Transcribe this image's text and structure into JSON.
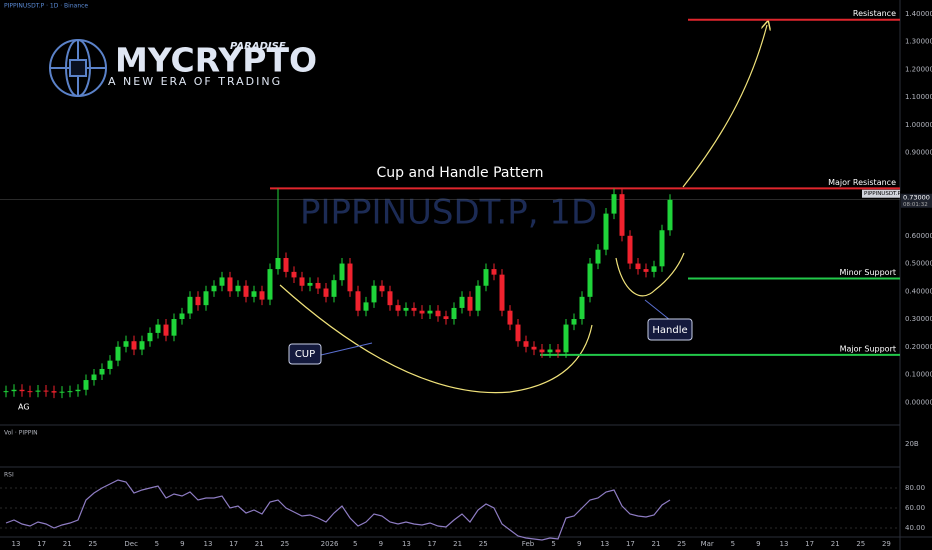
{
  "chart_data": {
    "type": "candlestick",
    "title": "Cup and Handle Pattern",
    "symbol_header": "PIPPINUSDT.P · 1D · Binance",
    "watermark": "PIPPINUSDT.P, 1D",
    "corner_label": "AG",
    "logo": {
      "brand": "MYCRYPTO",
      "sub": "PARADISE",
      "tagline": "A NEW ERA OF TRADING"
    },
    "up_color": "#1fd43a",
    "down_color": "#f0222e",
    "ylim": [
      -0.082,
      1.45
    ],
    "yticks": [
      {
        "value": 1.4,
        "label": "1.40000"
      },
      {
        "value": 1.3,
        "label": "1.30000"
      },
      {
        "value": 1.2,
        "label": "1.20000"
      },
      {
        "value": 1.1,
        "label": "1.10000"
      },
      {
        "value": 1.0,
        "label": "1.00000"
      },
      {
        "value": 0.9,
        "label": "0.90000"
      },
      {
        "value": 0.6,
        "label": "0.60000"
      },
      {
        "value": 0.5,
        "label": "0.50000"
      },
      {
        "value": 0.4,
        "label": "0.40000"
      },
      {
        "value": 0.3,
        "label": "0.30000"
      },
      {
        "value": 0.2,
        "label": "0.20000"
      },
      {
        "value": 0.1,
        "label": "0.10000"
      },
      {
        "value": 0,
        "label": "0.00000"
      }
    ],
    "x_labels": [
      "13",
      "17",
      "21",
      "25",
      "Dec",
      "5",
      "9",
      "13",
      "17",
      "21",
      "25",
      "2026",
      "5",
      "9",
      "13",
      "17",
      "21",
      "25",
      "Feb",
      "5",
      "9",
      "13",
      "17",
      "21",
      "25",
      "Mar",
      "5",
      "9",
      "13",
      "17",
      "21",
      "25",
      "29"
    ],
    "ohlc": [
      [
        0.038,
        0.06,
        0.018,
        0.04
      ],
      [
        0.04,
        0.065,
        0.02,
        0.045
      ],
      [
        0.045,
        0.065,
        0.02,
        0.04
      ],
      [
        0.04,
        0.06,
        0.018,
        0.038
      ],
      [
        0.038,
        0.062,
        0.018,
        0.042
      ],
      [
        0.042,
        0.062,
        0.02,
        0.04
      ],
      [
        0.04,
        0.06,
        0.015,
        0.035
      ],
      [
        0.035,
        0.058,
        0.015,
        0.038
      ],
      [
        0.038,
        0.06,
        0.018,
        0.04
      ],
      [
        0.04,
        0.065,
        0.02,
        0.045
      ],
      [
        0.045,
        0.1,
        0.025,
        0.08
      ],
      [
        0.08,
        0.12,
        0.06,
        0.1
      ],
      [
        0.1,
        0.14,
        0.08,
        0.12
      ],
      [
        0.12,
        0.17,
        0.1,
        0.15
      ],
      [
        0.15,
        0.22,
        0.13,
        0.2
      ],
      [
        0.2,
        0.24,
        0.18,
        0.22
      ],
      [
        0.22,
        0.24,
        0.17,
        0.19
      ],
      [
        0.19,
        0.24,
        0.17,
        0.22
      ],
      [
        0.22,
        0.27,
        0.2,
        0.25
      ],
      [
        0.25,
        0.3,
        0.23,
        0.28
      ],
      [
        0.28,
        0.3,
        0.22,
        0.24
      ],
      [
        0.24,
        0.32,
        0.22,
        0.3
      ],
      [
        0.3,
        0.34,
        0.28,
        0.32
      ],
      [
        0.32,
        0.4,
        0.3,
        0.38
      ],
      [
        0.38,
        0.4,
        0.33,
        0.35
      ],
      [
        0.35,
        0.42,
        0.33,
        0.4
      ],
      [
        0.4,
        0.44,
        0.38,
        0.42
      ],
      [
        0.42,
        0.47,
        0.4,
        0.45
      ],
      [
        0.45,
        0.47,
        0.38,
        0.4
      ],
      [
        0.4,
        0.44,
        0.38,
        0.42
      ],
      [
        0.42,
        0.44,
        0.36,
        0.38
      ],
      [
        0.38,
        0.42,
        0.36,
        0.4
      ],
      [
        0.4,
        0.42,
        0.35,
        0.37
      ],
      [
        0.37,
        0.5,
        0.35,
        0.48
      ],
      [
        0.48,
        0.77,
        0.46,
        0.52
      ],
      [
        0.52,
        0.54,
        0.45,
        0.47
      ],
      [
        0.47,
        0.49,
        0.43,
        0.45
      ],
      [
        0.45,
        0.47,
        0.4,
        0.42
      ],
      [
        0.42,
        0.45,
        0.4,
        0.43
      ],
      [
        0.43,
        0.45,
        0.39,
        0.41
      ],
      [
        0.41,
        0.43,
        0.36,
        0.38
      ],
      [
        0.38,
        0.46,
        0.36,
        0.44
      ],
      [
        0.44,
        0.52,
        0.42,
        0.5
      ],
      [
        0.5,
        0.52,
        0.38,
        0.4
      ],
      [
        0.4,
        0.42,
        0.31,
        0.33
      ],
      [
        0.33,
        0.38,
        0.31,
        0.36
      ],
      [
        0.36,
        0.44,
        0.34,
        0.42
      ],
      [
        0.42,
        0.44,
        0.38,
        0.4
      ],
      [
        0.4,
        0.42,
        0.33,
        0.35
      ],
      [
        0.35,
        0.37,
        0.31,
        0.33
      ],
      [
        0.33,
        0.36,
        0.31,
        0.34
      ],
      [
        0.34,
        0.36,
        0.31,
        0.33
      ],
      [
        0.33,
        0.35,
        0.3,
        0.32
      ],
      [
        0.32,
        0.35,
        0.3,
        0.33
      ],
      [
        0.33,
        0.35,
        0.29,
        0.31
      ],
      [
        0.31,
        0.33,
        0.28,
        0.3
      ],
      [
        0.3,
        0.36,
        0.28,
        0.34
      ],
      [
        0.34,
        0.4,
        0.32,
        0.38
      ],
      [
        0.38,
        0.4,
        0.31,
        0.33
      ],
      [
        0.33,
        0.44,
        0.31,
        0.42
      ],
      [
        0.42,
        0.5,
        0.4,
        0.48
      ],
      [
        0.48,
        0.5,
        0.44,
        0.46
      ],
      [
        0.46,
        0.48,
        0.31,
        0.33
      ],
      [
        0.33,
        0.35,
        0.26,
        0.28
      ],
      [
        0.28,
        0.3,
        0.2,
        0.22
      ],
      [
        0.22,
        0.24,
        0.18,
        0.2
      ],
      [
        0.2,
        0.22,
        0.17,
        0.19
      ],
      [
        0.19,
        0.21,
        0.16,
        0.18
      ],
      [
        0.18,
        0.21,
        0.16,
        0.19
      ],
      [
        0.19,
        0.21,
        0.16,
        0.18
      ],
      [
        0.18,
        0.3,
        0.16,
        0.28
      ],
      [
        0.28,
        0.32,
        0.26,
        0.3
      ],
      [
        0.3,
        0.4,
        0.28,
        0.38
      ],
      [
        0.38,
        0.52,
        0.36,
        0.5
      ],
      [
        0.5,
        0.57,
        0.48,
        0.55
      ],
      [
        0.55,
        0.7,
        0.53,
        0.68
      ],
      [
        0.68,
        0.77,
        0.66,
        0.75
      ],
      [
        0.75,
        0.77,
        0.58,
        0.6
      ],
      [
        0.6,
        0.62,
        0.48,
        0.5
      ],
      [
        0.5,
        0.52,
        0.46,
        0.48
      ],
      [
        0.48,
        0.5,
        0.45,
        0.47
      ],
      [
        0.47,
        0.51,
        0.45,
        0.49
      ],
      [
        0.49,
        0.64,
        0.47,
        0.62
      ],
      [
        0.62,
        0.75,
        0.6,
        0.73
      ]
    ],
    "levels": [
      {
        "name": "Resistance",
        "value": 1.379,
        "color": "#e0262d"
      },
      {
        "name": "Major Resistance",
        "value": 0.771,
        "color": "#e0262d"
      },
      {
        "name": "Minor Support",
        "value": 0.446,
        "color": "#22c84a"
      },
      {
        "name": "Major Support",
        "value": 0.171,
        "color": "#22c84a"
      }
    ],
    "annotations": {
      "cup": "CUP",
      "handle": "Handle"
    },
    "last_price": {
      "symbol": "PIPPINUSDT.P",
      "value": 0.73,
      "label": "0.73000",
      "countdown": "08:01:32"
    },
    "volume_panel": {
      "name": "Vol · PIPPIN",
      "tick": "20B"
    },
    "rsi": {
      "name": "RSI",
      "color": "#8e7cc3",
      "ylim": [
        23,
        100
      ],
      "yticks": [
        {
          "value": 80,
          "label": "80.00"
        },
        {
          "value": 60,
          "label": "60.00"
        },
        {
          "value": 40,
          "label": "40.00"
        }
      ],
      "values": [
        45,
        48,
        44,
        42,
        46,
        44,
        40,
        43,
        45,
        48,
        68,
        75,
        80,
        84,
        88,
        86,
        75,
        78,
        80,
        82,
        70,
        74,
        72,
        76,
        68,
        70,
        70,
        72,
        60,
        62,
        55,
        58,
        54,
        66,
        68,
        60,
        56,
        52,
        53,
        50,
        46,
        55,
        62,
        50,
        42,
        46,
        54,
        52,
        46,
        44,
        46,
        44,
        43,
        45,
        42,
        41,
        48,
        54,
        46,
        58,
        64,
        60,
        44,
        38,
        32,
        30,
        29,
        28,
        30,
        29,
        50,
        52,
        60,
        68,
        70,
        76,
        78,
        62,
        54,
        52,
        51,
        53,
        63,
        68
      ]
    }
  }
}
